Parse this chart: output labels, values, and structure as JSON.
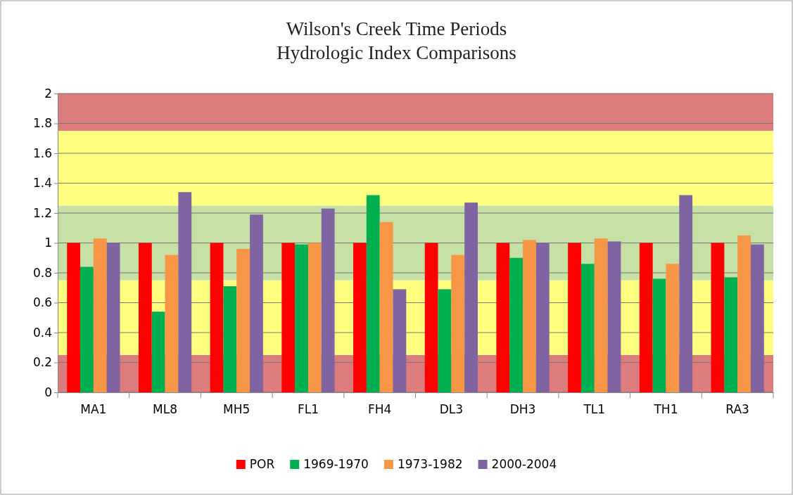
{
  "chart_data": {
    "type": "bar",
    "title": "Wilson's Creek Time Periods\nHydrologic Index Comparisons",
    "categories": [
      "MA1",
      "ML8",
      "MH5",
      "FL1",
      "FH4",
      "DL3",
      "DH3",
      "TL1",
      "TH1",
      "RA3"
    ],
    "series": [
      {
        "name": "POR",
        "color": "#ff0000",
        "values": [
          1,
          1,
          1,
          1,
          1,
          1,
          1,
          1,
          1,
          1
        ]
      },
      {
        "name": "1969-1970",
        "color": "#00b050",
        "values": [
          0.84,
          0.54,
          0.71,
          0.99,
          1.32,
          0.69,
          0.9,
          0.86,
          0.76,
          0.77
        ]
      },
      {
        "name": "1973-1982",
        "color": "#f79646",
        "values": [
          1.03,
          0.92,
          0.96,
          1.0,
          1.14,
          0.92,
          1.02,
          1.03,
          0.86,
          1.05
        ]
      },
      {
        "name": "2000-2004",
        "color": "#8064a2",
        "values": [
          1.0,
          1.34,
          1.19,
          1.23,
          0.69,
          1.27,
          1.0,
          1.01,
          1.32,
          0.99
        ]
      }
    ],
    "ylim": [
      0,
      2
    ],
    "yticks": [
      0,
      {
        "value": 0.2,
        "label": "0.2"
      },
      {
        "value": 0.4,
        "label": "0.4"
      },
      {
        "value": 0.6,
        "label": "0.6"
      },
      {
        "value": 0.8,
        "label": "0.8"
      },
      1,
      {
        "value": 1.2,
        "label": "1.2"
      },
      {
        "value": 1.4,
        "label": "1.4"
      },
      {
        "value": 1.6,
        "label": "1.6"
      },
      {
        "value": 1.8,
        "label": "1.8"
      },
      2
    ],
    "bands": [
      {
        "axis": "y",
        "from": 0,
        "to": 0.25,
        "color": "#dc7c7c"
      },
      {
        "axis": "y",
        "from": 0.25,
        "to": 0.75,
        "color": "#ffff80"
      },
      {
        "axis": "y",
        "from": 0.75,
        "to": 1.25,
        "color": "#c6e0a6"
      },
      {
        "axis": "y",
        "from": 1.25,
        "to": 1.75,
        "color": "#ffff80"
      },
      {
        "axis": "y",
        "from": 1.75,
        "to": 2,
        "color": "#dc7c7c"
      }
    ],
    "grid": "y",
    "legend": "bottom"
  }
}
